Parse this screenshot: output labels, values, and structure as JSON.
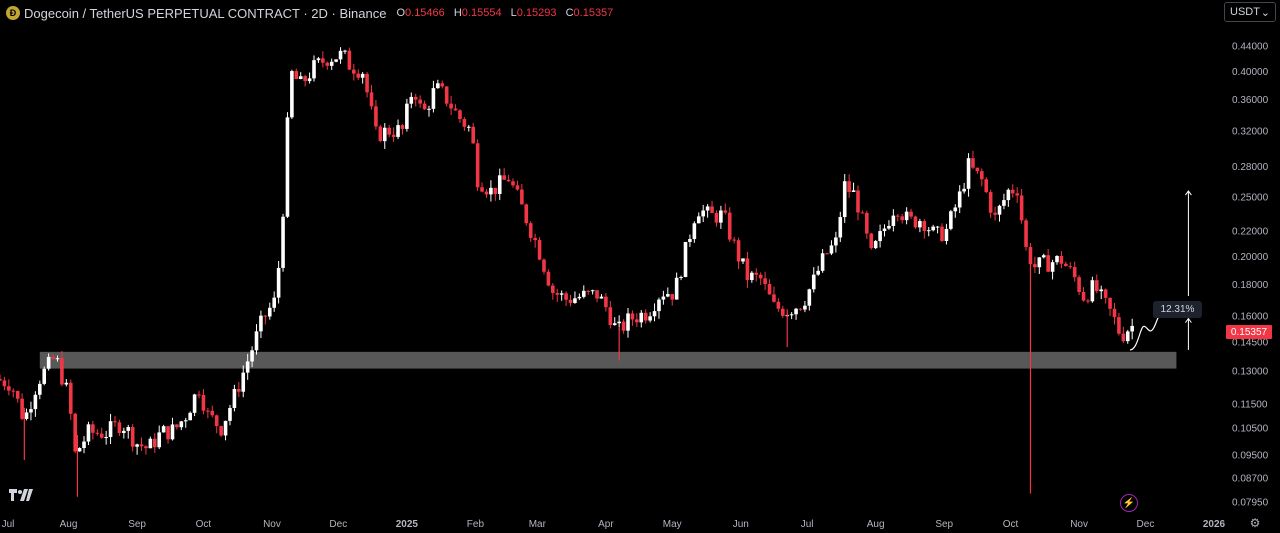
{
  "header": {
    "title": "Dogecoin / TetherUS PERPETUAL CONTRACT · 2D · Binance",
    "open_label": "O",
    "open": "0.15466",
    "high_label": "H",
    "high": "0.15554",
    "low_label": "L",
    "low": "0.15293",
    "close_label": "C",
    "close": "0.15357"
  },
  "currency_button": {
    "label": "USDT",
    "icon": "chevron-down-icon"
  },
  "current_price_tag": "0.15357",
  "measure_label": "12.31%",
  "colors": {
    "up": "#ffffff",
    "down": "#f23645",
    "zone": "#5d5d5d",
    "background": "#000000",
    "axis_text": "#b2b5be"
  },
  "chart_data": {
    "type": "candlestick",
    "title": "Dogecoin / TetherUS PERPETUAL CONTRACT · 2D · Binance",
    "y_scale": "log",
    "ylim": [
      0.0765,
      0.47
    ],
    "y_ticks": [
      "0.44000",
      "0.40000",
      "0.36000",
      "0.32000",
      "0.28000",
      "0.25000",
      "0.22000",
      "0.20000",
      "0.18000",
      "0.16000",
      "0.14500",
      "0.13000",
      "0.11500",
      "0.10500",
      "0.09500",
      "0.08700",
      "0.07950"
    ],
    "x_ticks": [
      "Jul",
      "Aug",
      "Sep",
      "Oct",
      "Nov",
      "Dec",
      "2025",
      "Feb",
      "Mar",
      "Apr",
      "May",
      "Jun",
      "Jul",
      "Aug",
      "Sep",
      "Oct",
      "Nov",
      "Dec",
      "2026"
    ],
    "x_range": [
      "2024-07-01",
      "2026-01-01"
    ],
    "support_zone": {
      "from": 0.131,
      "to": 0.1395,
      "start": "2024-07-19",
      "end": "2025-12-15"
    },
    "projection": {
      "from": 0.1405,
      "to": 0.1535,
      "peak": 0.1645,
      "change_pct": "12.31%"
    },
    "target_arrow": {
      "from": 0.1405,
      "to": 0.255
    },
    "candles_path": [
      [
        "2024-07-01",
        0.126
      ],
      [
        "2024-07-08",
        0.124
      ],
      [
        "2024-07-14",
        0.108
      ],
      [
        "2024-07-20",
        0.125
      ],
      [
        "2024-07-28",
        0.137
      ],
      [
        "2024-08-03",
        0.118
      ],
      [
        "2024-08-06",
        0.095
      ],
      [
        "2024-08-12",
        0.103
      ],
      [
        "2024-08-20",
        0.103
      ],
      [
        "2024-08-27",
        0.107
      ],
      [
        "2024-09-03",
        0.099
      ],
      [
        "2024-09-08",
        0.097
      ],
      [
        "2024-09-14",
        0.103
      ],
      [
        "2024-09-20",
        0.104
      ],
      [
        "2024-09-25",
        0.11
      ],
      [
        "2024-10-01",
        0.122
      ],
      [
        "2024-10-05",
        0.11
      ],
      [
        "2024-10-11",
        0.105
      ],
      [
        "2024-10-17",
        0.118
      ],
      [
        "2024-10-24",
        0.138
      ],
      [
        "2024-10-30",
        0.158
      ],
      [
        "2024-11-04",
        0.168
      ],
      [
        "2024-11-07",
        0.205
      ],
      [
        "2024-11-10",
        0.325
      ],
      [
        "2024-11-12",
        0.395
      ],
      [
        "2024-11-16",
        0.38
      ],
      [
        "2024-11-22",
        0.405
      ],
      [
        "2024-11-28",
        0.42
      ],
      [
        "2024-12-05",
        0.425
      ],
      [
        "2024-12-08",
        0.41
      ],
      [
        "2024-12-14",
        0.4
      ],
      [
        "2024-12-20",
        0.315
      ],
      [
        "2024-12-26",
        0.32
      ],
      [
        "2025-01-01",
        0.32
      ],
      [
        "2025-01-06",
        0.38
      ],
      [
        "2025-01-10",
        0.338
      ],
      [
        "2025-01-16",
        0.375
      ],
      [
        "2025-01-20",
        0.365
      ],
      [
        "2025-01-26",
        0.338
      ],
      [
        "2025-02-01",
        0.32
      ],
      [
        "2025-02-04",
        0.268
      ],
      [
        "2025-02-10",
        0.255
      ],
      [
        "2025-02-18",
        0.268
      ],
      [
        "2025-02-25",
        0.235
      ],
      [
        "2025-03-04",
        0.203
      ],
      [
        "2025-03-10",
        0.175
      ],
      [
        "2025-03-16",
        0.17
      ],
      [
        "2025-03-24",
        0.172
      ],
      [
        "2025-03-30",
        0.173
      ],
      [
        "2025-04-04",
        0.163
      ],
      [
        "2025-04-08",
        0.15
      ],
      [
        "2025-04-14",
        0.158
      ],
      [
        "2025-04-22",
        0.162
      ],
      [
        "2025-04-28",
        0.175
      ],
      [
        "2025-05-04",
        0.174
      ],
      [
        "2025-05-10",
        0.21
      ],
      [
        "2025-05-14",
        0.24
      ],
      [
        "2025-05-20",
        0.232
      ],
      [
        "2025-05-26",
        0.233
      ],
      [
        "2025-06-01",
        0.203
      ],
      [
        "2025-06-06",
        0.185
      ],
      [
        "2025-06-12",
        0.183
      ],
      [
        "2025-06-18",
        0.165
      ],
      [
        "2025-06-24",
        0.163
      ],
      [
        "2025-07-01",
        0.168
      ],
      [
        "2025-07-06",
        0.182
      ],
      [
        "2025-07-11",
        0.2
      ],
      [
        "2025-07-16",
        0.21
      ],
      [
        "2025-07-20",
        0.26
      ],
      [
        "2025-07-25",
        0.25
      ],
      [
        "2025-08-01",
        0.2
      ],
      [
        "2025-08-06",
        0.218
      ],
      [
        "2025-08-12",
        0.243
      ],
      [
        "2025-08-18",
        0.227
      ],
      [
        "2025-08-24",
        0.23
      ],
      [
        "2025-08-30",
        0.215
      ],
      [
        "2025-09-04",
        0.22
      ],
      [
        "2025-09-10",
        0.25
      ],
      [
        "2025-09-14",
        0.28
      ],
      [
        "2025-09-20",
        0.265
      ],
      [
        "2025-09-26",
        0.23
      ],
      [
        "2025-10-02",
        0.255
      ],
      [
        "2025-10-06",
        0.258
      ],
      [
        "2025-10-10",
        0.205
      ],
      [
        "2025-10-14",
        0.192
      ],
      [
        "2025-10-20",
        0.195
      ],
      [
        "2025-10-26",
        0.197
      ],
      [
        "2025-11-01",
        0.184
      ],
      [
        "2025-11-05",
        0.172
      ],
      [
        "2025-11-10",
        0.178
      ],
      [
        "2025-11-14",
        0.168
      ],
      [
        "2025-11-18",
        0.16
      ],
      [
        "2025-11-22",
        0.148
      ],
      [
        "2025-11-26",
        0.1536
      ]
    ],
    "spikes": [
      [
        "2025-10-10",
        0.082
      ],
      [
        "2024-08-05",
        0.081
      ],
      [
        "2024-07-12",
        0.093
      ],
      [
        "2025-04-07",
        0.135
      ],
      [
        "2025-06-22",
        0.142
      ]
    ]
  }
}
